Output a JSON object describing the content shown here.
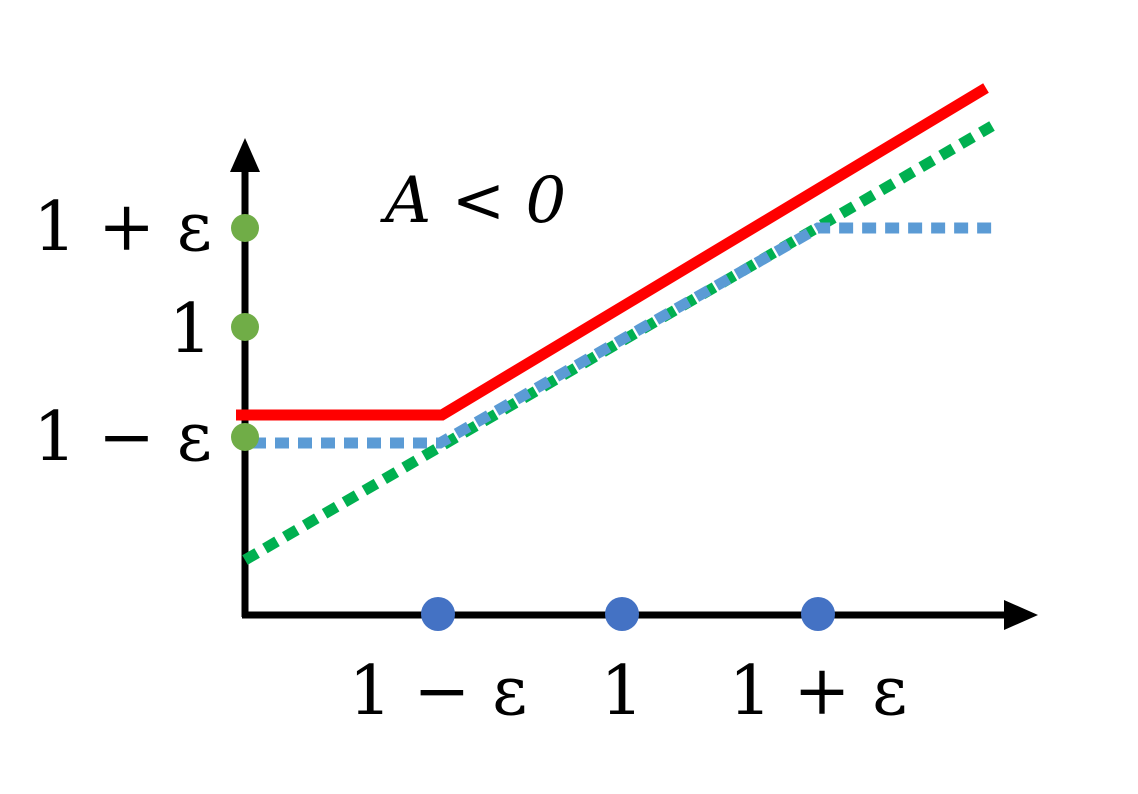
{
  "diagram": {
    "title": "A < 0",
    "y_tick_labels": [
      "1 + ε",
      "1",
      "1 − ε"
    ],
    "x_tick_labels": [
      "1 − ε",
      "1",
      "1 + ε"
    ],
    "colors": {
      "axis": "#000000",
      "red_line": "#ff0000",
      "blue_dotted_line": "#5b9bd5",
      "green_dotted_line": "#00b050",
      "y_markers": "#70ad47",
      "x_markers": "#4472c4"
    }
  }
}
